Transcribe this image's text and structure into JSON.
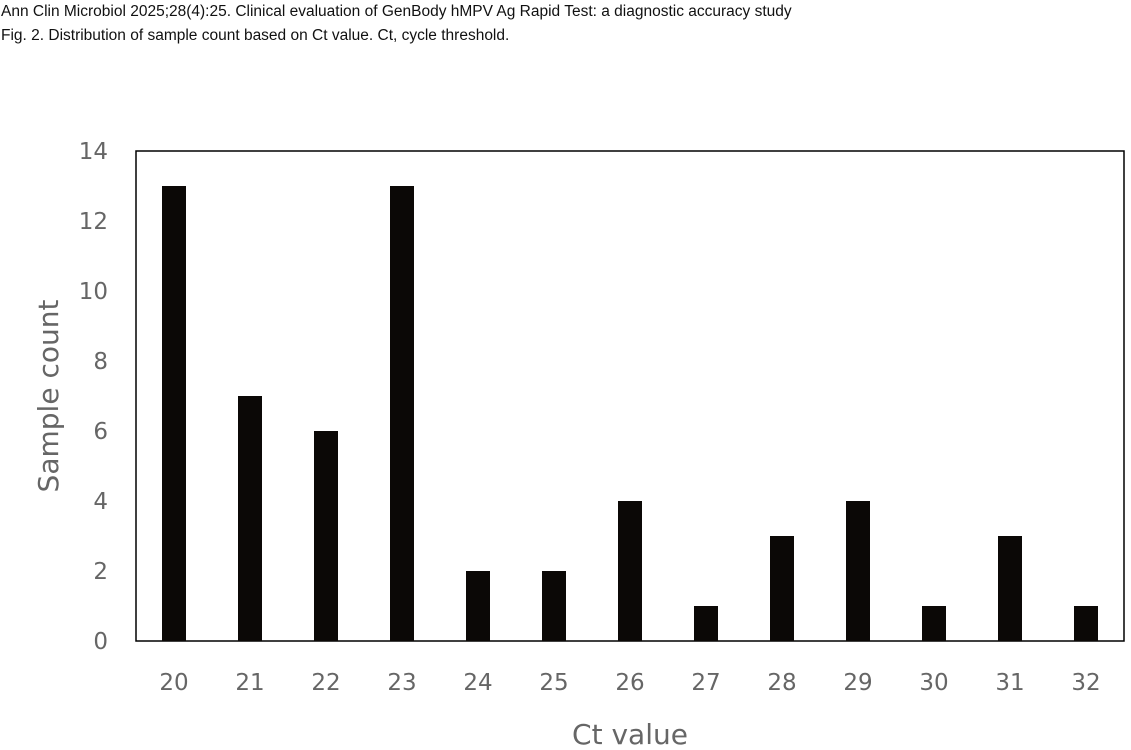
{
  "header": {
    "citation": "Ann Clin Microbiol 2025;28(4):25. Clinical evaluation of GenBody hMPV Ag Rapid Test: a diagnostic accuracy study",
    "figure_caption": "Fig. 2. Distribution of sample count based on Ct value. Ct, cycle threshold."
  },
  "chart_data": {
    "type": "bar",
    "title": "",
    "xlabel": "Ct value",
    "ylabel": "Sample count",
    "categories": [
      "20",
      "21",
      "22",
      "23",
      "24",
      "25",
      "26",
      "27",
      "28",
      "29",
      "30",
      "31",
      "32"
    ],
    "values": [
      13,
      7,
      6,
      13,
      2,
      2,
      4,
      1,
      3,
      4,
      1,
      3,
      1
    ],
    "ylim": [
      0,
      14
    ],
    "yticks": [
      0,
      2,
      4,
      6,
      8,
      10,
      12,
      14
    ],
    "grid": false,
    "legend": "none",
    "bar_color": "#0b0806"
  }
}
